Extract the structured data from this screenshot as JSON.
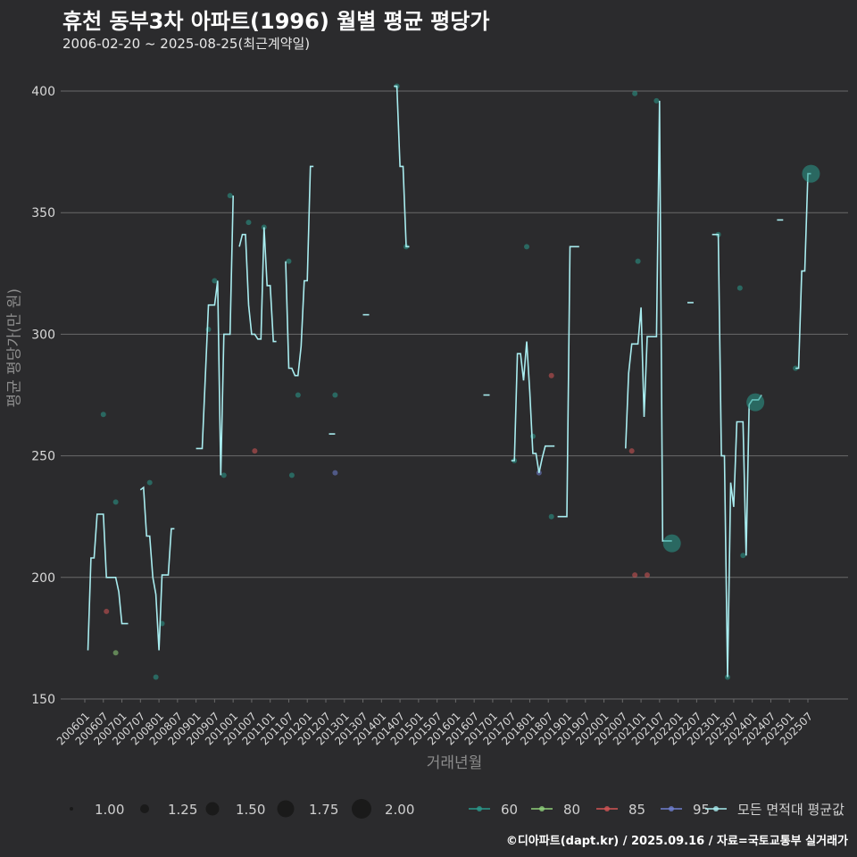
{
  "header": {
    "title": "휴천 동부3차 아파트(1996) 월별 평균 평당가",
    "subtitle": "2006-02-20 ~ 2025-08-25(최근계약일)"
  },
  "footer": {
    "caption": "©디아파트(dapt.kr) / 2025.09.16 / 자료=국토교통부 실거래가"
  },
  "chart_data": {
    "type": "line",
    "title": "휴천 동부3차 아파트(1996) 월별 평균 평당가",
    "subtitle": "2006-02-20 ~ 2025-08-25(최근계약일)",
    "xlabel": "거래년월",
    "ylabel": "평균 평당가(만 원)",
    "ylim": [
      150,
      400
    ],
    "yticks": [
      150,
      200,
      250,
      300,
      350,
      400
    ],
    "xticks": [
      "200601",
      "200607",
      "200701",
      "200707",
      "200801",
      "200807",
      "200901",
      "200907",
      "201001",
      "201007",
      "201101",
      "201107",
      "201201",
      "201207",
      "201301",
      "201307",
      "201401",
      "201407",
      "201501",
      "201507",
      "201601",
      "201607",
      "201701",
      "201707",
      "201801",
      "201807",
      "201901",
      "201907",
      "202001",
      "202007",
      "202101",
      "202107",
      "202201",
      "202207",
      "202301",
      "202307",
      "202401",
      "202407",
      "202501",
      "202507"
    ],
    "grid": true,
    "colors": {
      "background": "#2b2b2d",
      "line": "#a8ecef",
      "grid": "#6a6a6a",
      "s60": "#2a9a8c",
      "s80": "#8fd07a",
      "s85": "#d35555",
      "s95": "#6f7fd0"
    },
    "legend_size": {
      "title": "",
      "values": [
        "1.00",
        "1.25",
        "1.50",
        "1.75",
        "2.00"
      ]
    },
    "legend_color": [
      {
        "name": "60",
        "color": "#2a9a8c"
      },
      {
        "name": "80",
        "color": "#8fd07a"
      },
      {
        "name": "85",
        "color": "#d35555"
      },
      {
        "name": "95",
        "color": "#6f7fd0"
      },
      {
        "name": "모든 면적대 평균값",
        "color": "#a8ecef"
      }
    ],
    "series_avg": {
      "name": "모든 면적대 평균값",
      "segments": [
        [
          [
            "2006-02",
            170
          ],
          [
            "2006-03",
            208
          ],
          [
            "2006-04",
            208
          ],
          [
            "2006-05",
            226
          ],
          [
            "2006-06",
            226
          ],
          [
            "2006-07",
            226
          ],
          [
            "2006-08",
            200
          ],
          [
            "2006-09",
            200
          ],
          [
            "2006-10",
            200
          ],
          [
            "2006-11",
            200
          ],
          [
            "2006-12",
            194
          ],
          [
            "2007-01",
            181
          ],
          [
            "2007-02",
            181
          ],
          [
            "2007-03",
            181
          ]
        ],
        [
          [
            "2007-07",
            236
          ],
          [
            "2007-08",
            237
          ],
          [
            "2007-09",
            217
          ],
          [
            "2007-10",
            217
          ],
          [
            "2007-11",
            200
          ],
          [
            "2007-12",
            193
          ],
          [
            "2008-01",
            170
          ],
          [
            "2008-02",
            201
          ],
          [
            "2008-03",
            201
          ],
          [
            "2008-04",
            201
          ],
          [
            "2008-05",
            220
          ],
          [
            "2008-06",
            220
          ]
        ],
        [
          [
            "2009-01",
            253
          ],
          [
            "2009-02",
            253
          ],
          [
            "2009-03",
            253
          ],
          [
            "2009-05",
            312
          ],
          [
            "2009-06",
            312
          ],
          [
            "2009-07",
            312
          ],
          [
            "2009-08",
            322
          ],
          [
            "2009-09",
            242
          ],
          [
            "2009-10",
            300
          ],
          [
            "2009-11",
            300
          ],
          [
            "2009-12",
            300
          ],
          [
            "2010-01",
            357
          ]
        ],
        [
          [
            "2010-03",
            336
          ],
          [
            "2010-04",
            341
          ],
          [
            "2010-05",
            341
          ],
          [
            "2010-06",
            312
          ],
          [
            "2010-07",
            300
          ],
          [
            "2010-08",
            300
          ],
          [
            "2010-09",
            298
          ],
          [
            "2010-10",
            298
          ],
          [
            "2010-11",
            344
          ],
          [
            "2010-12",
            320
          ],
          [
            "2011-01",
            320
          ],
          [
            "2011-02",
            297
          ],
          [
            "2011-03",
            297
          ]
        ],
        [
          [
            "2011-06",
            330
          ],
          [
            "2011-07",
            286
          ],
          [
            "2011-08",
            286
          ],
          [
            "2011-09",
            283
          ],
          [
            "2011-10",
            283
          ],
          [
            "2011-11",
            295
          ],
          [
            "2011-12",
            322
          ],
          [
            "2012-01",
            322
          ],
          [
            "2012-02",
            369
          ],
          [
            "2012-03",
            369
          ]
        ],
        [
          [
            "2012-08",
            259
          ],
          [
            "2012-09",
            259
          ],
          [
            "2012-10",
            259
          ]
        ],
        [
          [
            "2013-07",
            308
          ],
          [
            "2013-08",
            308
          ],
          [
            "2013-09",
            308
          ]
        ],
        [
          [
            "2014-05",
            402
          ],
          [
            "2014-06",
            402
          ],
          [
            "2014-07",
            369
          ],
          [
            "2014-08",
            369
          ],
          [
            "2014-09",
            336
          ],
          [
            "2014-10",
            336
          ]
        ],
        [
          [
            "2016-10",
            275
          ],
          [
            "2016-11",
            275
          ],
          [
            "2016-12",
            275
          ]
        ],
        [
          [
            "2017-07",
            248
          ],
          [
            "2017-08",
            248
          ],
          [
            "2017-09",
            292
          ],
          [
            "2017-10",
            292
          ],
          [
            "2017-11",
            281
          ],
          [
            "2017-12",
            297
          ],
          [
            "2018-01",
            276
          ],
          [
            "2018-02",
            251
          ],
          [
            "2018-03",
            251
          ],
          [
            "2018-04",
            243
          ],
          [
            "2018-05",
            249
          ],
          [
            "2018-06",
            254
          ],
          [
            "2018-07",
            254
          ],
          [
            "2018-08",
            254
          ],
          [
            "2018-09",
            254
          ]
        ],
        [
          [
            "2018-10",
            225
          ],
          [
            "2018-11",
            225
          ],
          [
            "2018-12",
            225
          ],
          [
            "2019-01",
            225
          ],
          [
            "2019-02",
            336
          ],
          [
            "2019-03",
            336
          ],
          [
            "2019-04",
            336
          ],
          [
            "2019-05",
            336
          ]
        ],
        [
          [
            "2020-08",
            253
          ],
          [
            "2020-09",
            284
          ],
          [
            "2020-10",
            296
          ],
          [
            "2020-11",
            296
          ],
          [
            "2020-12",
            296
          ],
          [
            "2021-01",
            311
          ],
          [
            "2021-02",
            266
          ],
          [
            "2021-03",
            299
          ],
          [
            "2021-04",
            299
          ],
          [
            "2021-05",
            299
          ],
          [
            "2021-06",
            299
          ],
          [
            "2021-07",
            396
          ],
          [
            "2021-08",
            215
          ],
          [
            "2021-09",
            215
          ],
          [
            "2021-10",
            215
          ],
          [
            "2021-11",
            215
          ]
        ],
        [
          [
            "2022-04",
            313
          ],
          [
            "2022-05",
            313
          ],
          [
            "2022-06",
            313
          ]
        ],
        [
          [
            "2022-12",
            341
          ],
          [
            "2022-13",
            341
          ],
          [
            "2023-02",
            341
          ],
          [
            "2023-03",
            250
          ],
          [
            "2023-04",
            250
          ],
          [
            "2023-05",
            159
          ],
          [
            "2023-06",
            239
          ],
          [
            "2023-07",
            229
          ],
          [
            "2023-08",
            264
          ],
          [
            "2023-09",
            264
          ],
          [
            "2023-10",
            264
          ],
          [
            "2023-11",
            209
          ],
          [
            "2023-12",
            271
          ],
          [
            "2024-01",
            273
          ],
          [
            "2024-02",
            273
          ],
          [
            "2024-03",
            273
          ],
          [
            "2024-04",
            275
          ]
        ],
        [
          [
            "2024-09",
            347
          ],
          [
            "2024-10",
            347
          ],
          [
            "2024-11",
            347
          ]
        ],
        [
          [
            "2025-03",
            286
          ],
          [
            "2025-04",
            286
          ],
          [
            "2025-05",
            326
          ],
          [
            "2025-06",
            326
          ],
          [
            "2025-07",
            366
          ],
          [
            "2025-08",
            366
          ]
        ]
      ]
    },
    "series_points": [
      {
        "name": "60",
        "x": "2006-07",
        "y": 267
      },
      {
        "name": "85",
        "x": "2006-08",
        "y": 186
      },
      {
        "name": "80",
        "x": "2006-11",
        "y": 169
      },
      {
        "name": "60",
        "x": "2006-11",
        "y": 231
      },
      {
        "name": "60",
        "x": "2007-10",
        "y": 239
      },
      {
        "name": "60",
        "x": "2007-12",
        "y": 159
      },
      {
        "name": "60",
        "x": "2008-02",
        "y": 181
      },
      {
        "name": "60",
        "x": "2009-05",
        "y": 302
      },
      {
        "name": "60",
        "x": "2009-07",
        "y": 322
      },
      {
        "name": "60",
        "x": "2009-10",
        "y": 242
      },
      {
        "name": "60",
        "x": "2009-12",
        "y": 357
      },
      {
        "name": "60",
        "x": "2010-06",
        "y": 346
      },
      {
        "name": "85",
        "x": "2010-08",
        "y": 252
      },
      {
        "name": "60",
        "x": "2010-11",
        "y": 344
      },
      {
        "name": "60",
        "x": "2011-07",
        "y": 330
      },
      {
        "name": "60",
        "x": "2011-08",
        "y": 242
      },
      {
        "name": "60",
        "x": "2011-10",
        "y": 275
      },
      {
        "name": "95",
        "x": "2012-10",
        "y": 243
      },
      {
        "name": "60",
        "x": "2012-10",
        "y": 275
      },
      {
        "name": "60",
        "x": "2014-06",
        "y": 402
      },
      {
        "name": "60",
        "x": "2014-09",
        "y": 336
      },
      {
        "name": "60",
        "x": "2017-08",
        "y": 248
      },
      {
        "name": "60",
        "x": "2017-12",
        "y": 336
      },
      {
        "name": "60",
        "x": "2018-02",
        "y": 258
      },
      {
        "name": "95",
        "x": "2018-04",
        "y": 243
      },
      {
        "name": "85",
        "x": "2018-08",
        "y": 283
      },
      {
        "name": "60",
        "x": "2018-08",
        "y": 225
      },
      {
        "name": "85",
        "x": "2020-10",
        "y": 252
      },
      {
        "name": "60",
        "x": "2020-11",
        "y": 399
      },
      {
        "name": "85",
        "x": "2020-11",
        "y": 201
      },
      {
        "name": "60",
        "x": "2020-12",
        "y": 330
      },
      {
        "name": "85",
        "x": "2021-03",
        "y": 201
      },
      {
        "name": "60",
        "x": "2021-06",
        "y": 396
      },
      {
        "name": "60",
        "x": "2023-02",
        "y": 341
      },
      {
        "name": "60",
        "x": "2023-05",
        "y": 159
      },
      {
        "name": "60",
        "x": "2023-09",
        "y": 319
      },
      {
        "name": "60",
        "x": "2023-10",
        "y": 209
      },
      {
        "name": "60",
        "x": "2025-03",
        "y": 286
      }
    ],
    "big_points": [
      {
        "x": "2021-11",
        "y": 214
      },
      {
        "x": "2024-02",
        "y": 272
      },
      {
        "x": "2025-08",
        "y": 366
      }
    ]
  }
}
